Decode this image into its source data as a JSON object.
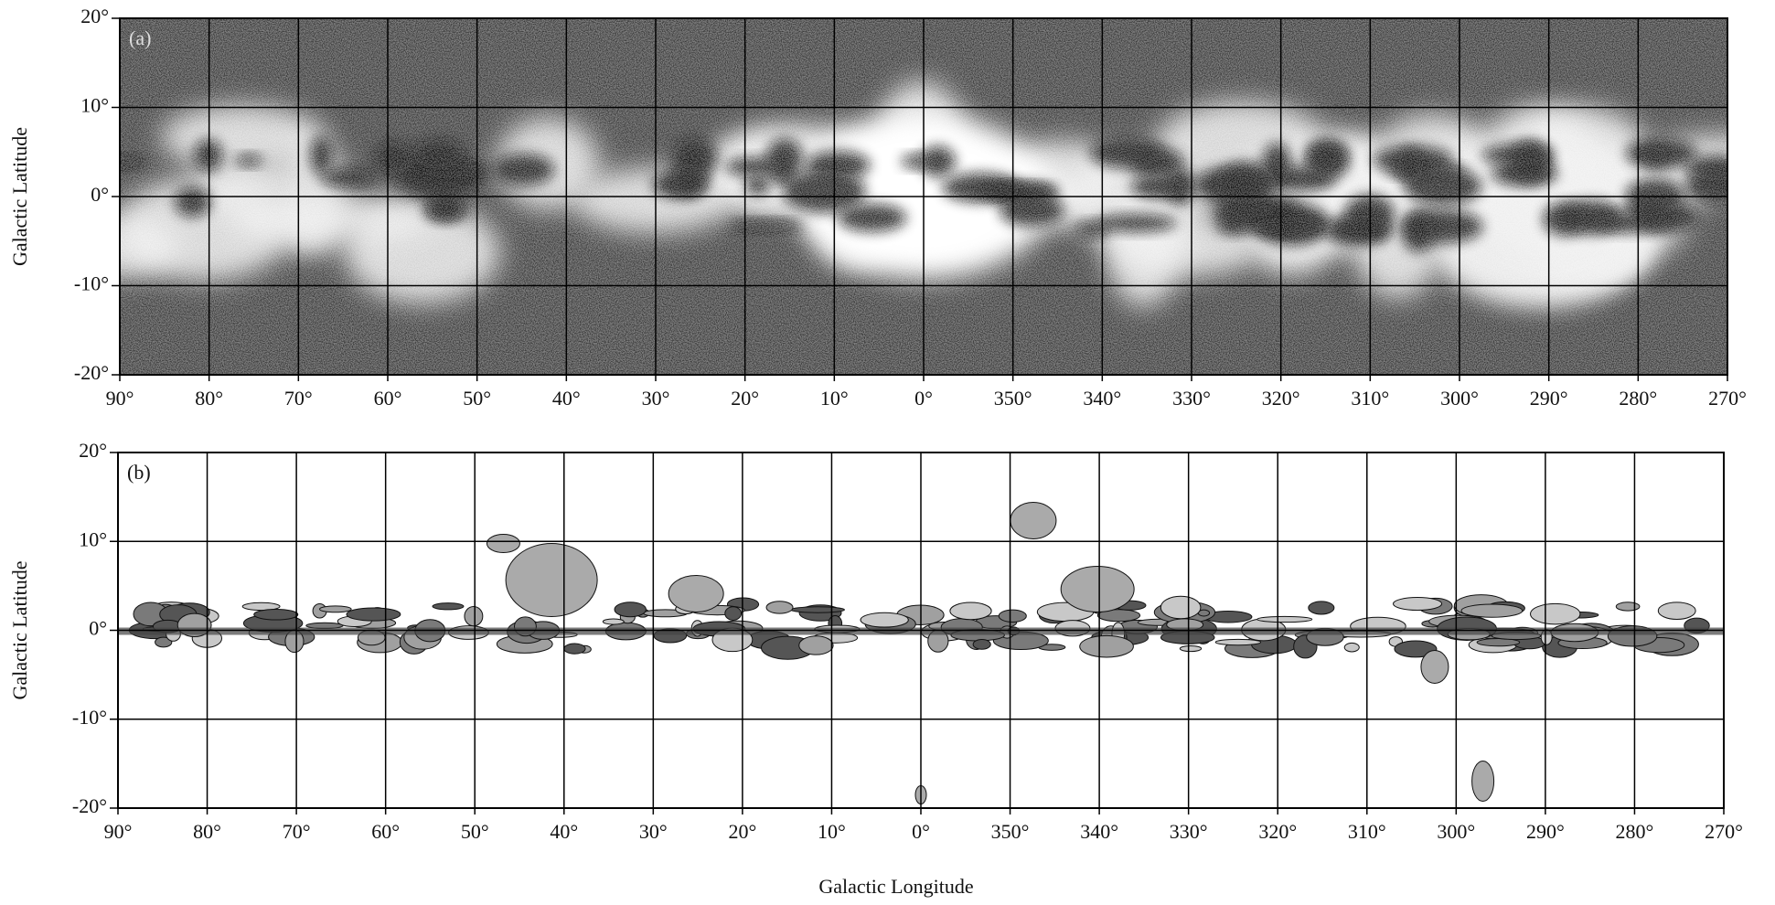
{
  "panels": [
    {
      "label": "(a)"
    },
    {
      "label": "(b)"
    }
  ],
  "axes": {
    "y_label": "Galactic Latitude",
    "x_label": "Galactic Longitude",
    "xlim": [
      90,
      270
    ],
    "xticks": [
      {
        "value": 90,
        "label": "90°"
      },
      {
        "value": 80,
        "label": "80°"
      },
      {
        "value": 70,
        "label": "70°"
      },
      {
        "value": 60,
        "label": "60°"
      },
      {
        "value": 50,
        "label": "50°"
      },
      {
        "value": 40,
        "label": "40°"
      },
      {
        "value": 30,
        "label": "30°"
      },
      {
        "value": 20,
        "label": "20°"
      },
      {
        "value": 10,
        "label": "10°"
      },
      {
        "value": 0,
        "label": "0°"
      },
      {
        "value": 350,
        "label": "350°"
      },
      {
        "value": 340,
        "label": "340°"
      },
      {
        "value": 330,
        "label": "330°"
      },
      {
        "value": 320,
        "label": "320°"
      },
      {
        "value": 310,
        "label": "310°"
      },
      {
        "value": 300,
        "label": "300°"
      },
      {
        "value": 290,
        "label": "290°"
      },
      {
        "value": 280,
        "label": "280°"
      },
      {
        "value": 270,
        "label": "270°"
      }
    ],
    "ylim": [
      -20,
      20
    ],
    "yticks": [
      {
        "value": 20,
        "label": "20°"
      },
      {
        "value": 10,
        "label": "10°"
      },
      {
        "value": 0,
        "label": "0°"
      },
      {
        "value": -10,
        "label": "-10°"
      },
      {
        "value": -20,
        "label": "-20°"
      }
    ]
  }
}
